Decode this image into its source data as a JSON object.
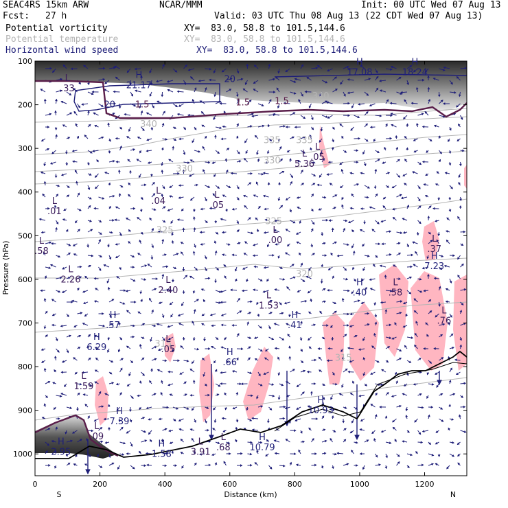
{
  "header": {
    "model": "SEAC4RS 15km ARW",
    "center": "NCAR/MMM",
    "init": "Init: 00 UTC Wed 07 Aug 13",
    "fcst_label": "Fcst:",
    "fcst_value": "27 h",
    "valid": "Valid: 03 UTC Thu 08 Aug 13 (22 CDT Wed 07 Aug 13)"
  },
  "fields": [
    {
      "name": "Potential vorticity",
      "xy": "XY=  83.0, 58.8 to 101.5,144.6",
      "color": "#000000"
    },
    {
      "name": "Potential temperature",
      "xy": "XY=  83.0, 58.8 to 101.5,144.6",
      "color": "#b4b4b4"
    },
    {
      "name": "Horizontal wind speed",
      "xy": "XY=  83.0, 58.8 to 101.5,144.6",
      "color": "#1e1e78"
    }
  ],
  "chart_data": {
    "type": "cross-section",
    "xlabel": "Distance (km)",
    "ylabel": "Pressure (hPa)",
    "xlim": [
      0,
      1330
    ],
    "ylim": [
      1050,
      100
    ],
    "x_ticks": [
      0,
      200,
      400,
      600,
      800,
      1000,
      1200
    ],
    "y_ticks": [
      100,
      200,
      300,
      400,
      500,
      600,
      700,
      800,
      900,
      1000
    ],
    "end_labels": {
      "left": "S",
      "right": "N"
    },
    "colors": {
      "theta": "#b4b4b4",
      "wind": "#1e1e78",
      "tropopause": "#5a1e4a",
      "pv_shade": "#ffb6c1",
      "terrain": "#000000"
    },
    "theta_contours": [
      {
        "label": "340",
        "x": 880,
        "p": 180
      },
      {
        "label": "340",
        "x": 350,
        "p": 245
      },
      {
        "label": "335",
        "x": 730,
        "p": 282
      },
      {
        "label": "335",
        "x": 830,
        "p": 282
      },
      {
        "label": "330",
        "x": 460,
        "p": 347
      },
      {
        "label": "330",
        "x": 730,
        "p": 328
      },
      {
        "label": "325",
        "x": 400,
        "p": 488
      },
      {
        "label": "325",
        "x": 735,
        "p": 467
      },
      {
        "label": "320",
        "x": 830,
        "p": 588
      },
      {
        "label": "315",
        "x": 395,
        "p": 748
      },
      {
        "label": "315",
        "x": 950,
        "p": 780
      }
    ],
    "pv_contours": [
      {
        "label": "1.5",
        "x": 330,
        "p": 200
      },
      {
        "label": "1.5",
        "x": 640,
        "p": 195
      },
      {
        "label": "1.5",
        "x": 760,
        "p": 192
      }
    ],
    "wind_contours": [
      {
        "label": "20",
        "x": 230,
        "p": 200
      },
      {
        "label": "20",
        "x": 600,
        "p": 142
      }
    ],
    "extrema": [
      {
        "type": "L",
        "value": ".33",
        "x": 100,
        "p": 150
      },
      {
        "type": "H",
        "value": "21.17",
        "x": 320,
        "p": 143
      },
      {
        "type": "H",
        "value": "17.08",
        "x": 1000,
        "p": 113
      },
      {
        "type": "H",
        "value": "18.24",
        "x": 1170,
        "p": 113
      },
      {
        "type": "L",
        "value": "5.36",
        "x": 830,
        "p": 323
      },
      {
        "type": "L",
        "value": ".05",
        "x": 870,
        "p": 308
      },
      {
        "type": "L",
        "value": ".01",
        "x": 60,
        "p": 432
      },
      {
        "type": "L",
        "value": ".04",
        "x": 380,
        "p": 408
      },
      {
        "type": "L",
        "value": ".05",
        "x": 560,
        "p": 418
      },
      {
        "type": "L",
        "value": ".00",
        "x": 740,
        "p": 498
      },
      {
        "type": "L",
        "value": ".58",
        "x": 20,
        "p": 523
      },
      {
        "type": "L",
        "value": ".37",
        "x": 1230,
        "p": 518
      },
      {
        "type": "H",
        "value": "7.23",
        "x": 1230,
        "p": 558
      },
      {
        "type": "L",
        "value": "2.26",
        "x": 110,
        "p": 588
      },
      {
        "type": "L",
        "value": "2.40",
        "x": 410,
        "p": 613
      },
      {
        "type": "L",
        "value": "1.53",
        "x": 720,
        "p": 648
      },
      {
        "type": "H",
        "value": ".40",
        "x": 1000,
        "p": 618
      },
      {
        "type": "L",
        "value": ".58",
        "x": 1110,
        "p": 618
      },
      {
        "type": "H",
        "value": ".57",
        "x": 240,
        "p": 693
      },
      {
        "type": "H",
        "value": ".41",
        "x": 800,
        "p": 693
      },
      {
        "type": "L",
        "value": ".76",
        "x": 1260,
        "p": 683
      },
      {
        "type": "H",
        "value": "6.29",
        "x": 190,
        "p": 743
      },
      {
        "type": "L",
        "value": ".05",
        "x": 410,
        "p": 748
      },
      {
        "type": "H",
        "value": ".66",
        "x": 600,
        "p": 778
      },
      {
        "type": "L",
        "value": "1.59",
        "x": 150,
        "p": 833
      },
      {
        "type": "H",
        "value": "10.93",
        "x": 880,
        "p": 888
      },
      {
        "type": "H",
        "value": "7.39",
        "x": 260,
        "p": 913
      },
      {
        "type": "L",
        "value": ".09",
        "x": 190,
        "p": 948
      },
      {
        "type": "H",
        "value": "10.79",
        "x": 700,
        "p": 973
      },
      {
        "type": "H",
        "value": "2.95",
        "x": 80,
        "p": 983
      },
      {
        "type": "H",
        "value": "1.58",
        "x": 390,
        "p": 988
      },
      {
        "type": "L",
        "value": "3.91",
        "x": 510,
        "p": 983
      },
      {
        "type": "L",
        "value": ".68",
        "x": 580,
        "p": 973
      }
    ]
  }
}
